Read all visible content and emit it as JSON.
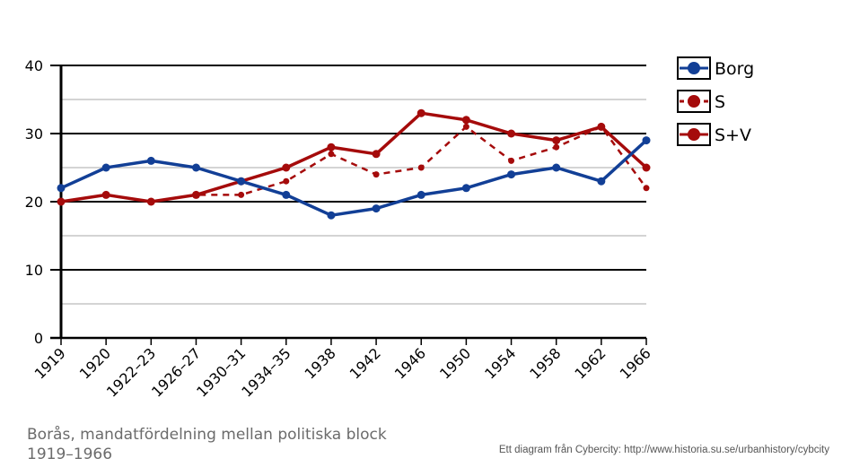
{
  "chart_data": {
    "type": "line",
    "title": "",
    "xlabel": "",
    "ylabel": "",
    "categories": [
      "1919",
      "1920",
      "1922–23",
      "1926–27",
      "1930–31",
      "1934–35",
      "1938",
      "1942",
      "1946",
      "1950",
      "1954",
      "1958",
      "1962",
      "1966"
    ],
    "ylim": [
      0,
      40
    ],
    "yticks": [
      0,
      10,
      20,
      30,
      40
    ],
    "grid": true,
    "legend_position": "right",
    "series": [
      {
        "name": "Borg",
        "color": "#123f96",
        "style": "solid",
        "values": [
          22,
          25,
          26,
          25,
          23,
          21,
          18,
          19,
          21,
          22,
          24,
          25,
          23,
          29
        ]
      },
      {
        "name": "S",
        "color": "#a50b0b",
        "style": "dashed",
        "values": [
          20,
          21,
          20,
          21,
          21,
          23,
          27,
          24,
          25,
          31,
          26,
          28,
          31,
          22
        ]
      },
      {
        "name": "S+V",
        "color": "#a50b0b",
        "style": "solid",
        "values": [
          20,
          21,
          20,
          21,
          23,
          25,
          28,
          27,
          33,
          32,
          30,
          29,
          31,
          25
        ]
      }
    ]
  },
  "caption": "Borås, mandatfördelning  mellan politiska block 1919–1966",
  "credit": "Ett diagram från Cybercity: http://www.historia.su.se/urbanhistory/cybcity"
}
